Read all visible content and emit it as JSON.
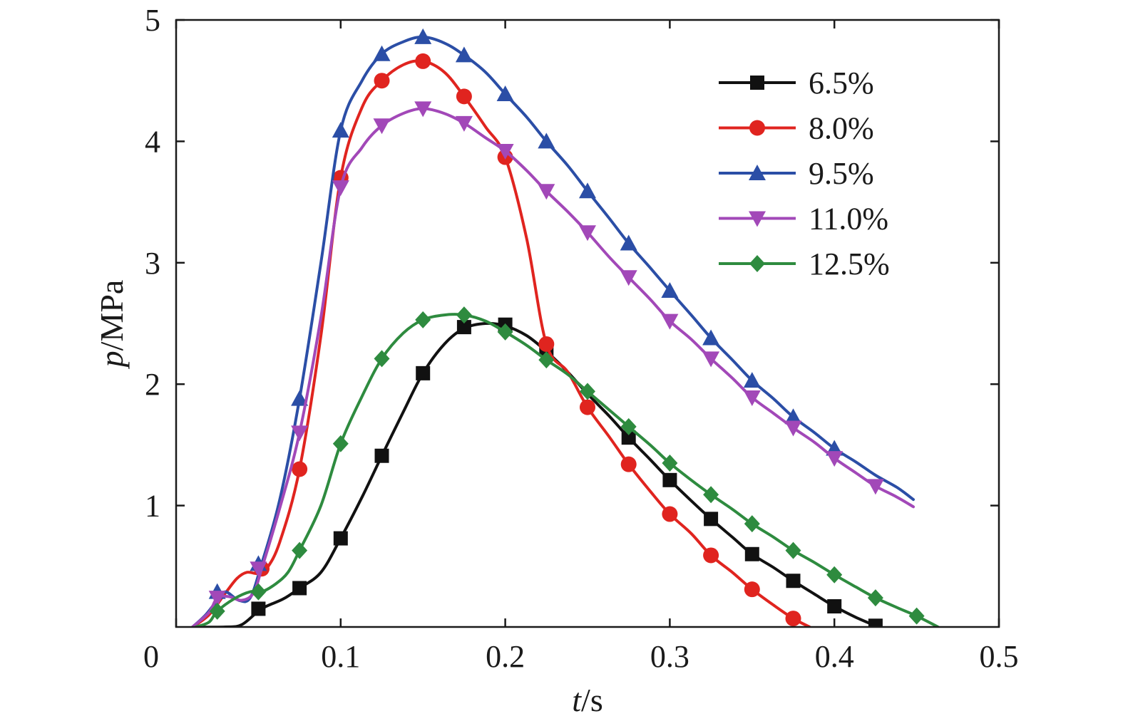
{
  "chart_data": {
    "type": "line",
    "title": "",
    "xlabel": "t/s",
    "ylabel": "p/MPa",
    "xlabel_parts": {
      "italic": "t",
      "rest": "/s"
    },
    "ylabel_parts": {
      "italic": "p",
      "rest": "/MPa"
    },
    "xlim": [
      0,
      0.5
    ],
    "ylim": [
      0,
      5
    ],
    "xticks": [
      0,
      0.1,
      0.2,
      0.3,
      0.4,
      0.5
    ],
    "xtick_labels": [
      "0",
      "0.1",
      "0.2",
      "0.3",
      "0.4",
      "0.5"
    ],
    "yticks": [
      1,
      2,
      3,
      4,
      5
    ],
    "ytick_labels": [
      "1",
      "2",
      "3",
      "4",
      "5"
    ],
    "grid": false,
    "legend_position": "top-right",
    "series": [
      {
        "name": "6.5%",
        "color": "#111111",
        "marker": "square",
        "line": [
          [
            0.01,
            0.0
          ],
          [
            0.03,
            0.0
          ],
          [
            0.04,
            0.02
          ],
          [
            0.052,
            0.15
          ],
          [
            0.065,
            0.23
          ],
          [
            0.075,
            0.32
          ],
          [
            0.088,
            0.45
          ],
          [
            0.1,
            0.73
          ],
          [
            0.113,
            1.07
          ],
          [
            0.125,
            1.41
          ],
          [
            0.138,
            1.77
          ],
          [
            0.15,
            2.09
          ],
          [
            0.163,
            2.33
          ],
          [
            0.175,
            2.46
          ],
          [
            0.188,
            2.5
          ],
          [
            0.2,
            2.48
          ],
          [
            0.213,
            2.4
          ],
          [
            0.225,
            2.27
          ],
          [
            0.238,
            2.1
          ],
          [
            0.25,
            1.92
          ],
          [
            0.263,
            1.74
          ],
          [
            0.275,
            1.56
          ],
          [
            0.288,
            1.38
          ],
          [
            0.3,
            1.21
          ],
          [
            0.313,
            1.04
          ],
          [
            0.325,
            0.89
          ],
          [
            0.338,
            0.74
          ],
          [
            0.35,
            0.6
          ],
          [
            0.363,
            0.49
          ],
          [
            0.375,
            0.38
          ],
          [
            0.388,
            0.27
          ],
          [
            0.4,
            0.17
          ],
          [
            0.413,
            0.08
          ],
          [
            0.425,
            0.01
          ]
        ],
        "markers": [
          [
            0.05,
            0.15
          ],
          [
            0.075,
            0.32
          ],
          [
            0.1,
            0.73
          ],
          [
            0.125,
            1.41
          ],
          [
            0.15,
            2.09
          ],
          [
            0.175,
            2.47
          ],
          [
            0.2,
            2.49
          ],
          [
            0.225,
            2.29
          ],
          [
            0.275,
            1.56
          ],
          [
            0.3,
            1.21
          ],
          [
            0.325,
            0.89
          ],
          [
            0.35,
            0.6
          ],
          [
            0.375,
            0.38
          ],
          [
            0.4,
            0.17
          ],
          [
            0.425,
            0.01
          ]
        ]
      },
      {
        "name": "8.0%",
        "color": "#e0241f",
        "marker": "circle",
        "line": [
          [
            0.01,
            0.0
          ],
          [
            0.02,
            0.1
          ],
          [
            0.03,
            0.28
          ],
          [
            0.037,
            0.4
          ],
          [
            0.043,
            0.45
          ],
          [
            0.05,
            0.44
          ],
          [
            0.055,
            0.48
          ],
          [
            0.063,
            0.7
          ],
          [
            0.075,
            1.3
          ],
          [
            0.088,
            2.4
          ],
          [
            0.1,
            3.7
          ],
          [
            0.113,
            4.28
          ],
          [
            0.125,
            4.5
          ],
          [
            0.138,
            4.63
          ],
          [
            0.15,
            4.66
          ],
          [
            0.163,
            4.57
          ],
          [
            0.175,
            4.37
          ],
          [
            0.188,
            4.12
          ],
          [
            0.2,
            3.87
          ],
          [
            0.213,
            3.2
          ],
          [
            0.225,
            2.33
          ],
          [
            0.238,
            2.1
          ],
          [
            0.25,
            1.81
          ],
          [
            0.263,
            1.57
          ],
          [
            0.275,
            1.34
          ],
          [
            0.288,
            1.12
          ],
          [
            0.3,
            0.93
          ],
          [
            0.313,
            0.77
          ],
          [
            0.325,
            0.59
          ],
          [
            0.338,
            0.45
          ],
          [
            0.35,
            0.31
          ],
          [
            0.363,
            0.18
          ],
          [
            0.375,
            0.07
          ],
          [
            0.385,
            0.0
          ]
        ],
        "markers": [
          [
            0.052,
            0.48
          ],
          [
            0.075,
            1.3
          ],
          [
            0.1,
            3.7
          ],
          [
            0.125,
            4.5
          ],
          [
            0.15,
            4.66
          ],
          [
            0.175,
            4.37
          ],
          [
            0.2,
            3.87
          ],
          [
            0.225,
            2.33
          ],
          [
            0.25,
            1.81
          ],
          [
            0.275,
            1.34
          ],
          [
            0.3,
            0.93
          ],
          [
            0.325,
            0.59
          ],
          [
            0.35,
            0.31
          ],
          [
            0.375,
            0.07
          ]
        ]
      },
      {
        "name": "9.5%",
        "color": "#2b4ea6",
        "marker": "triangle-up",
        "line": [
          [
            0.01,
            0.0
          ],
          [
            0.018,
            0.1
          ],
          [
            0.025,
            0.22
          ],
          [
            0.03,
            0.29
          ],
          [
            0.038,
            0.22
          ],
          [
            0.045,
            0.24
          ],
          [
            0.052,
            0.52
          ],
          [
            0.063,
            1.05
          ],
          [
            0.075,
            1.88
          ],
          [
            0.088,
            3.0
          ],
          [
            0.1,
            4.09
          ],
          [
            0.113,
            4.5
          ],
          [
            0.125,
            4.72
          ],
          [
            0.138,
            4.82
          ],
          [
            0.15,
            4.86
          ],
          [
            0.163,
            4.81
          ],
          [
            0.175,
            4.71
          ],
          [
            0.188,
            4.57
          ],
          [
            0.2,
            4.39
          ],
          [
            0.213,
            4.2
          ],
          [
            0.225,
            4.0
          ],
          [
            0.238,
            3.8
          ],
          [
            0.25,
            3.59
          ],
          [
            0.263,
            3.37
          ],
          [
            0.275,
            3.16
          ],
          [
            0.288,
            2.96
          ],
          [
            0.3,
            2.77
          ],
          [
            0.313,
            2.57
          ],
          [
            0.325,
            2.38
          ],
          [
            0.338,
            2.2
          ],
          [
            0.35,
            2.03
          ],
          [
            0.363,
            1.88
          ],
          [
            0.375,
            1.73
          ],
          [
            0.388,
            1.6
          ],
          [
            0.4,
            1.47
          ],
          [
            0.413,
            1.36
          ],
          [
            0.425,
            1.25
          ],
          [
            0.438,
            1.15
          ],
          [
            0.448,
            1.05
          ]
        ],
        "markers": [
          [
            0.025,
            0.29
          ],
          [
            0.05,
            0.52
          ],
          [
            0.075,
            1.88
          ],
          [
            0.1,
            4.09
          ],
          [
            0.125,
            4.72
          ],
          [
            0.15,
            4.86
          ],
          [
            0.175,
            4.71
          ],
          [
            0.2,
            4.39
          ],
          [
            0.225,
            4.0
          ],
          [
            0.25,
            3.59
          ],
          [
            0.275,
            3.16
          ],
          [
            0.3,
            2.77
          ],
          [
            0.325,
            2.38
          ],
          [
            0.35,
            2.03
          ],
          [
            0.375,
            1.73
          ],
          [
            0.4,
            1.47
          ]
        ]
      },
      {
        "name": "11.0%",
        "color": "#a248b8",
        "marker": "triangle-down",
        "line": [
          [
            0.01,
            0.0
          ],
          [
            0.02,
            0.12
          ],
          [
            0.025,
            0.24
          ],
          [
            0.032,
            0.25
          ],
          [
            0.04,
            0.22
          ],
          [
            0.047,
            0.28
          ],
          [
            0.052,
            0.48
          ],
          [
            0.063,
            0.98
          ],
          [
            0.075,
            1.6
          ],
          [
            0.088,
            2.55
          ],
          [
            0.1,
            3.62
          ],
          [
            0.113,
            3.95
          ],
          [
            0.125,
            4.13
          ],
          [
            0.138,
            4.23
          ],
          [
            0.15,
            4.27
          ],
          [
            0.163,
            4.23
          ],
          [
            0.175,
            4.15
          ],
          [
            0.188,
            4.03
          ],
          [
            0.2,
            3.92
          ],
          [
            0.213,
            3.76
          ],
          [
            0.225,
            3.59
          ],
          [
            0.238,
            3.42
          ],
          [
            0.25,
            3.25
          ],
          [
            0.263,
            3.05
          ],
          [
            0.275,
            2.88
          ],
          [
            0.288,
            2.7
          ],
          [
            0.3,
            2.52
          ],
          [
            0.313,
            2.37
          ],
          [
            0.325,
            2.21
          ],
          [
            0.338,
            2.05
          ],
          [
            0.35,
            1.89
          ],
          [
            0.363,
            1.76
          ],
          [
            0.375,
            1.64
          ],
          [
            0.388,
            1.52
          ],
          [
            0.4,
            1.39
          ],
          [
            0.413,
            1.27
          ],
          [
            0.425,
            1.16
          ],
          [
            0.438,
            1.07
          ],
          [
            0.448,
            0.99
          ]
        ],
        "markers": [
          [
            0.025,
            0.24
          ],
          [
            0.05,
            0.48
          ],
          [
            0.075,
            1.6
          ],
          [
            0.1,
            3.62
          ],
          [
            0.125,
            4.13
          ],
          [
            0.15,
            4.27
          ],
          [
            0.175,
            4.15
          ],
          [
            0.2,
            3.92
          ],
          [
            0.225,
            3.59
          ],
          [
            0.25,
            3.25
          ],
          [
            0.275,
            2.88
          ],
          [
            0.3,
            2.52
          ],
          [
            0.325,
            2.21
          ],
          [
            0.35,
            1.89
          ],
          [
            0.375,
            1.64
          ],
          [
            0.4,
            1.39
          ],
          [
            0.425,
            1.16
          ]
        ]
      },
      {
        "name": "12.5%",
        "color": "#2e8b3f",
        "marker": "diamond",
        "line": [
          [
            0.012,
            0.0
          ],
          [
            0.02,
            0.04
          ],
          [
            0.025,
            0.13
          ],
          [
            0.035,
            0.23
          ],
          [
            0.045,
            0.29
          ],
          [
            0.052,
            0.29
          ],
          [
            0.06,
            0.35
          ],
          [
            0.068,
            0.45
          ],
          [
            0.075,
            0.63
          ],
          [
            0.088,
            1.0
          ],
          [
            0.1,
            1.51
          ],
          [
            0.113,
            1.9
          ],
          [
            0.125,
            2.21
          ],
          [
            0.138,
            2.42
          ],
          [
            0.15,
            2.53
          ],
          [
            0.163,
            2.57
          ],
          [
            0.175,
            2.57
          ],
          [
            0.188,
            2.52
          ],
          [
            0.2,
            2.43
          ],
          [
            0.213,
            2.32
          ],
          [
            0.225,
            2.2
          ],
          [
            0.238,
            2.08
          ],
          [
            0.25,
            1.94
          ],
          [
            0.263,
            1.79
          ],
          [
            0.275,
            1.65
          ],
          [
            0.288,
            1.5
          ],
          [
            0.3,
            1.35
          ],
          [
            0.313,
            1.21
          ],
          [
            0.325,
            1.09
          ],
          [
            0.338,
            0.97
          ],
          [
            0.35,
            0.85
          ],
          [
            0.363,
            0.74
          ],
          [
            0.375,
            0.63
          ],
          [
            0.388,
            0.53
          ],
          [
            0.4,
            0.43
          ],
          [
            0.413,
            0.33
          ],
          [
            0.425,
            0.24
          ],
          [
            0.438,
            0.16
          ],
          [
            0.45,
            0.09
          ],
          [
            0.463,
            0.0
          ]
        ],
        "markers": [
          [
            0.025,
            0.13
          ],
          [
            0.05,
            0.29
          ],
          [
            0.075,
            0.63
          ],
          [
            0.1,
            1.51
          ],
          [
            0.125,
            2.21
          ],
          [
            0.15,
            2.53
          ],
          [
            0.175,
            2.57
          ],
          [
            0.2,
            2.43
          ],
          [
            0.225,
            2.2
          ],
          [
            0.25,
            1.94
          ],
          [
            0.275,
            1.65
          ],
          [
            0.3,
            1.35
          ],
          [
            0.325,
            1.09
          ],
          [
            0.35,
            0.85
          ],
          [
            0.375,
            0.63
          ],
          [
            0.4,
            0.43
          ],
          [
            0.425,
            0.24
          ],
          [
            0.45,
            0.09
          ]
        ]
      }
    ]
  }
}
